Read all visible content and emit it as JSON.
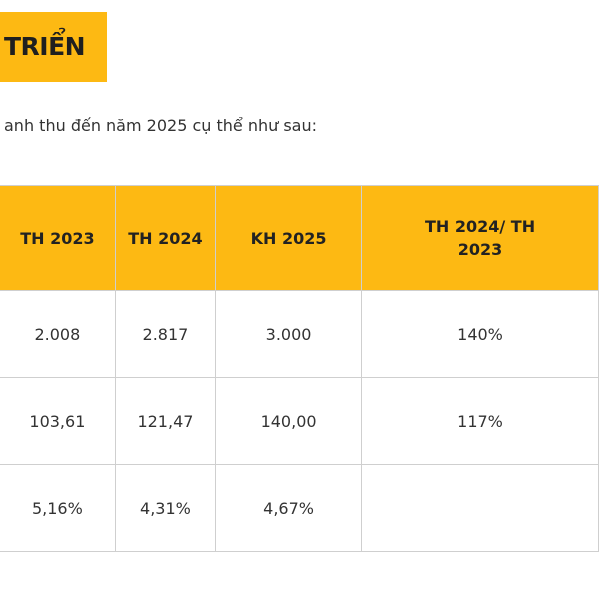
{
  "header": {
    "title": "TRIỂN"
  },
  "intro": "anh thu đến năm 2025 cụ thể như sau:",
  "table": {
    "columns": [
      "TH 2023",
      "TH 2024",
      "KH 2025",
      "TH 2024/ TH 2023"
    ],
    "rows": [
      [
        "2.008",
        "2.817",
        "3.000",
        "140%"
      ],
      [
        "103,61",
        "121,47",
        "140,00",
        "117%"
      ],
      [
        "5,16%",
        "4,31%",
        "4,67%"
      ]
    ]
  }
}
